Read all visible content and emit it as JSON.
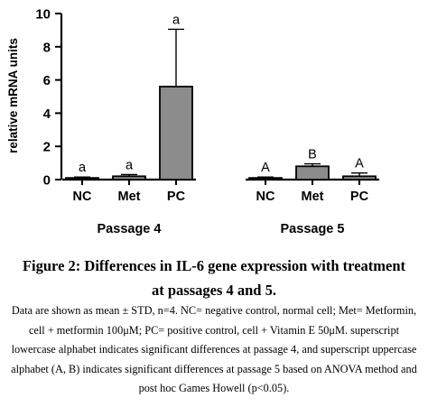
{
  "chart_data": {
    "type": "bar",
    "ylabel": "relative mRNA units",
    "ylim": [
      0,
      10
    ],
    "y_ticks": [
      0,
      2,
      4,
      6,
      8,
      10
    ],
    "grid": false,
    "groups": [
      {
        "name": "Passage 4",
        "categories": [
          "NC",
          "Met",
          "PC"
        ],
        "values": [
          0.1,
          0.2,
          5.6
        ],
        "errors": [
          0.05,
          0.1,
          3.45
        ],
        "significance": [
          "a",
          "a",
          "a"
        ]
      },
      {
        "name": "Passage 5",
        "categories": [
          "NC",
          "Met",
          "PC"
        ],
        "values": [
          0.1,
          0.8,
          0.2
        ],
        "errors": [
          0.05,
          0.15,
          0.2
        ],
        "significance": [
          "A",
          "B",
          "A"
        ]
      }
    ]
  },
  "caption": {
    "title_line1": "Figure 2: Differences in IL-6 gene expression with treatment",
    "title_line2": "at passages 4 and 5.",
    "note": "Data are shown as mean ± STD, n=4. NC= negative control, normal cell; Met= Metformin, cell + metformin 100μM; PC= positive control, cell + Vitamin E 50μM. superscript lowercase alphabet indicates significant differences at passage 4, and superscript uppercase alphabet (A, B) indicates significant differences at passage 5 based on ANOVA method and post hoc Games Howell (p<0.05)."
  }
}
